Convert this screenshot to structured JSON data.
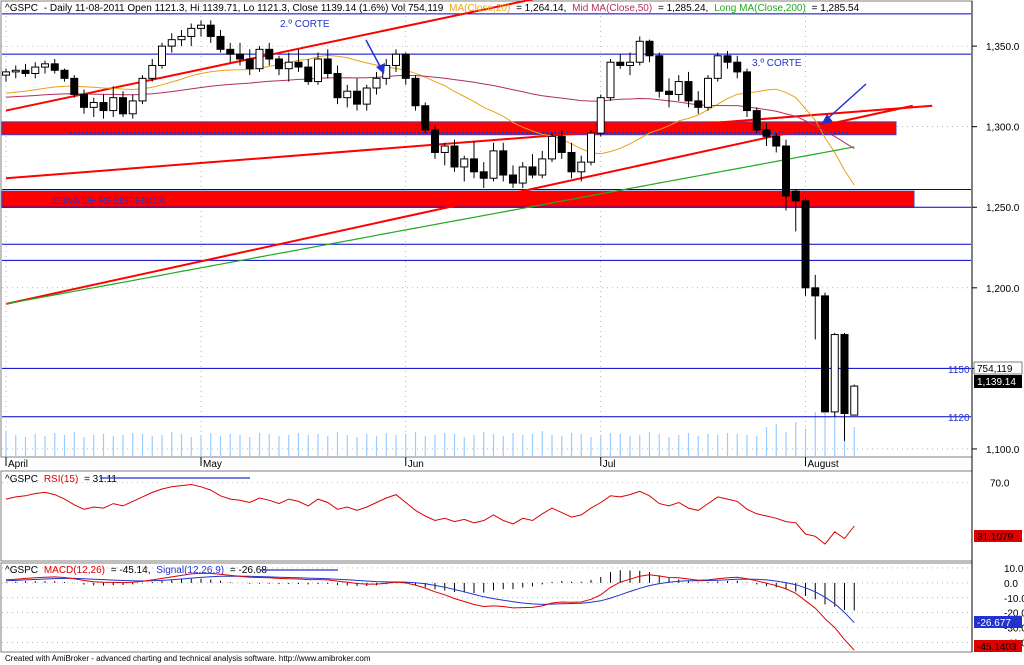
{
  "colors": {
    "background": "#ffffff",
    "frame": "#7f7f7f",
    "h_line": "#0000cc",
    "trend": "#ff0000",
    "zone": "#ff0000",
    "ma20": "#e8a21a",
    "ma50": "#b03060",
    "ma200": "#22aa22",
    "volume": "#99ccff",
    "rsi": "#dd0000",
    "macd": "#dd0000",
    "signal": "#2233cc",
    "annotation": "#2233cc"
  },
  "header": {
    "symbol": "^GSPC",
    "info": "- Daily 11-08-2011 Open 1121.3, Hi 1139.71, Lo 1121.3, Close 1139.14 (1.6%) Vol 754,119",
    "ma20_label": "MA(Close,20)",
    "ma20_value": "= 1,264.14,",
    "ma50_label": "Mid MA(Close,50)",
    "ma50_value": "= 1,285.24,",
    "ma200_label": "Long MA(Close,200)",
    "ma200_value": "= 1,285.54"
  },
  "annotations": {
    "corte2": "2.º CORTE",
    "corte3": "3.º CORTE",
    "zona": "ZONA DE RESISTENCIA",
    "label_1150": "1150",
    "label_1120": "1120",
    "badge_volume": "754,119",
    "badge_close": "1,139.14"
  },
  "rsi_panel": {
    "symbol": "^GSPC",
    "label": "RSI(15)",
    "value": "= 31.11",
    "badge": "31.1079"
  },
  "macd_panel": {
    "symbol": "^GSPC",
    "label": "MACD(12,26)",
    "value": "= -45.14,",
    "signal_label": "Signal(12,26,9)",
    "signal_value": "= -26.68",
    "badge_signal": "-26.677",
    "badge_macd": "-45.1403"
  },
  "footer": "Created with AmiBroker - advanced charting and technical analysis software. http://www.amibroker.com",
  "chart_data": {
    "type": "candlestick",
    "price_axis": {
      "ylim": [
        1095,
        1378
      ],
      "ticks": [
        "1,350.0",
        "1,300.0",
        "1,250.0",
        "1,200.0",
        "1,150.0",
        "1,100.0"
      ],
      "tick_values": [
        1350,
        1300,
        1250,
        1200,
        1150,
        1100
      ]
    },
    "months": [
      "April",
      "May",
      "Jun",
      "Jul",
      "August"
    ],
    "month_start_index": [
      0,
      20,
      41,
      61,
      82
    ],
    "horizontal_levels": [
      1370,
      1345,
      1261,
      1250,
      1227,
      1217,
      1150,
      1120
    ],
    "resistance_zones": [
      {
        "low": 1295,
        "high": 1303
      },
      {
        "low": 1250,
        "high": 1260
      }
    ],
    "trendlines": [
      {
        "from": [
          0,
          1310
        ],
        "to": [
          61,
          1388
        ]
      },
      {
        "from": [
          0,
          1268
        ],
        "to": [
          95,
          1313
        ]
      },
      {
        "from": [
          0,
          1190
        ],
        "to": [
          93,
          1313
        ]
      }
    ],
    "candles": [
      [
        1332,
        1336,
        1328,
        1334
      ],
      [
        1334,
        1338,
        1330,
        1335
      ],
      [
        1335,
        1339,
        1331,
        1333
      ],
      [
        1333,
        1340,
        1330,
        1337
      ],
      [
        1337,
        1341,
        1333,
        1339
      ],
      [
        1339,
        1342,
        1333,
        1335
      ],
      [
        1335,
        1336,
        1328,
        1330
      ],
      [
        1330,
        1332,
        1318,
        1320
      ],
      [
        1320,
        1323,
        1308,
        1312
      ],
      [
        1312,
        1318,
        1306,
        1315
      ],
      [
        1315,
        1320,
        1305,
        1310
      ],
      [
        1310,
        1325,
        1306,
        1318
      ],
      [
        1318,
        1322,
        1306,
        1308
      ],
      [
        1308,
        1320,
        1305,
        1316
      ],
      [
        1316,
        1332,
        1314,
        1330
      ],
      [
        1330,
        1342,
        1328,
        1338
      ],
      [
        1338,
        1352,
        1336,
        1350
      ],
      [
        1350,
        1358,
        1346,
        1354
      ],
      [
        1354,
        1360,
        1350,
        1356
      ],
      [
        1356,
        1364,
        1350,
        1361
      ],
      [
        1361,
        1366,
        1356,
        1363
      ],
      [
        1363,
        1366,
        1352,
        1356
      ],
      [
        1356,
        1360,
        1346,
        1348
      ],
      [
        1348,
        1352,
        1340,
        1345
      ],
      [
        1345,
        1352,
        1338,
        1342
      ],
      [
        1342,
        1348,
        1332,
        1336
      ],
      [
        1336,
        1350,
        1334,
        1348
      ],
      [
        1348,
        1352,
        1338,
        1342
      ],
      [
        1342,
        1344,
        1332,
        1336
      ],
      [
        1336,
        1346,
        1328,
        1340
      ],
      [
        1340,
        1348,
        1334,
        1337
      ],
      [
        1337,
        1342,
        1326,
        1328
      ],
      [
        1328,
        1346,
        1326,
        1342
      ],
      [
        1342,
        1348,
        1330,
        1333
      ],
      [
        1333,
        1338,
        1314,
        1318
      ],
      [
        1318,
        1326,
        1312,
        1322
      ],
      [
        1322,
        1330,
        1310,
        1314
      ],
      [
        1314,
        1326,
        1310,
        1324
      ],
      [
        1324,
        1334,
        1320,
        1330
      ],
      [
        1330,
        1342,
        1326,
        1338
      ],
      [
        1338,
        1348,
        1334,
        1345
      ],
      [
        1345,
        1346,
        1326,
        1330
      ],
      [
        1330,
        1332,
        1310,
        1313
      ],
      [
        1313,
        1315,
        1296,
        1298
      ],
      [
        1298,
        1301,
        1280,
        1284
      ],
      [
        1284,
        1290,
        1276,
        1288
      ],
      [
        1288,
        1292,
        1272,
        1275
      ],
      [
        1275,
        1282,
        1266,
        1280
      ],
      [
        1280,
        1291,
        1268,
        1272
      ],
      [
        1272,
        1278,
        1262,
        1268
      ],
      [
        1268,
        1290,
        1266,
        1285
      ],
      [
        1285,
        1290,
        1266,
        1270
      ],
      [
        1270,
        1276,
        1262,
        1265
      ],
      [
        1265,
        1278,
        1262,
        1275
      ],
      [
        1275,
        1283,
        1268,
        1270
      ],
      [
        1270,
        1285,
        1268,
        1280
      ],
      [
        1280,
        1296,
        1278,
        1294
      ],
      [
        1294,
        1298,
        1280,
        1284
      ],
      [
        1284,
        1290,
        1268,
        1272
      ],
      [
        1272,
        1282,
        1266,
        1278
      ],
      [
        1278,
        1298,
        1276,
        1296
      ],
      [
        1296,
        1320,
        1294,
        1318
      ],
      [
        1318,
        1342,
        1316,
        1340
      ],
      [
        1340,
        1345,
        1336,
        1338
      ],
      [
        1338,
        1346,
        1332,
        1340
      ],
      [
        1340,
        1356,
        1338,
        1353
      ],
      [
        1353,
        1354,
        1340,
        1344
      ],
      [
        1344,
        1346,
        1318,
        1322
      ],
      [
        1322,
        1330,
        1312,
        1320
      ],
      [
        1320,
        1332,
        1316,
        1328
      ],
      [
        1328,
        1334,
        1312,
        1316
      ],
      [
        1316,
        1322,
        1308,
        1312
      ],
      [
        1312,
        1332,
        1310,
        1330
      ],
      [
        1330,
        1346,
        1328,
        1344
      ],
      [
        1344,
        1347,
        1336,
        1340
      ],
      [
        1340,
        1344,
        1330,
        1334
      ],
      [
        1334,
        1336,
        1306,
        1310
      ],
      [
        1310,
        1312,
        1296,
        1298
      ],
      [
        1298,
        1302,
        1288,
        1294
      ],
      [
        1294,
        1296,
        1284,
        1288
      ],
      [
        1288,
        1292,
        1248,
        1257
      ],
      [
        1260,
        1261,
        1235,
        1254
      ],
      [
        1254,
        1256,
        1195,
        1200
      ],
      [
        1200,
        1208,
        1168,
        1195
      ],
      [
        1195,
        1197,
        1123,
        1123
      ],
      [
        1123,
        1172,
        1120,
        1171
      ],
      [
        1171,
        1172,
        1105,
        1122
      ],
      [
        1121,
        1140,
        1121,
        1139
      ]
    ],
    "volume": [
      0.25,
      0.22,
      0.2,
      0.23,
      0.21,
      0.24,
      0.22,
      0.25,
      0.2,
      0.22,
      0.23,
      0.21,
      0.22,
      0.24,
      0.23,
      0.21,
      0.22,
      0.25,
      0.23,
      0.2,
      0.22,
      0.24,
      0.21,
      0.23,
      0.22,
      0.2,
      0.24,
      0.23,
      0.21,
      0.22,
      0.24,
      0.22,
      0.23,
      0.21,
      0.25,
      0.22,
      0.2,
      0.23,
      0.21,
      0.24,
      0.22,
      0.23,
      0.25,
      0.21,
      0.22,
      0.24,
      0.23,
      0.2,
      0.22,
      0.25,
      0.23,
      0.21,
      0.24,
      0.22,
      0.23,
      0.26,
      0.22,
      0.21,
      0.24,
      0.23,
      0.2,
      0.22,
      0.24,
      0.23,
      0.21,
      0.22,
      0.25,
      0.23,
      0.2,
      0.22,
      0.24,
      0.21,
      0.23,
      0.22,
      0.24,
      0.23,
      0.22,
      0.21,
      0.3,
      0.33,
      0.25,
      0.35,
      0.28,
      0.45,
      0.6,
      0.42,
      0.38,
      0.3
    ],
    "rsi": {
      "ylim": [
        0,
        80
      ],
      "ticks": [
        70
      ],
      "values": [
        55,
        57,
        58,
        60,
        61,
        59,
        55,
        50,
        46,
        48,
        47,
        51,
        49,
        53,
        57,
        61,
        64,
        66,
        67,
        68,
        66,
        63,
        58,
        55,
        54,
        52,
        56,
        54,
        51,
        55,
        53,
        49,
        55,
        52,
        46,
        48,
        45,
        48,
        52,
        56,
        59,
        52,
        45,
        40,
        36,
        38,
        35,
        37,
        34,
        36,
        41,
        36,
        33,
        38,
        36,
        42,
        47,
        43,
        39,
        41,
        47,
        52,
        58,
        57,
        59,
        62,
        58,
        51,
        49,
        52,
        47,
        45,
        51,
        57,
        55,
        53,
        46,
        42,
        40,
        38,
        35,
        34,
        24,
        22,
        15,
        26,
        20,
        31.1
      ]
    },
    "macd": {
      "ylim": [
        -45,
        12
      ],
      "ticks": [
        10,
        0,
        -10,
        -20,
        -30,
        -40
      ],
      "macd": [
        2,
        2.5,
        3,
        3.4,
        3.8,
        4,
        3.6,
        2.8,
        1.6,
        0.8,
        0.4,
        0.3,
        0.2,
        0.4,
        1,
        2,
        3,
        4,
        5,
        6,
        6.5,
        6.4,
        5.8,
        5,
        4.4,
        3.8,
        3.6,
        3.4,
        3,
        2.8,
        2.6,
        2.2,
        2.2,
        2,
        1.2,
        0.4,
        -0.4,
        -0.8,
        -0.8,
        -0.2,
        0.4,
        0,
        -1.5,
        -3.5,
        -6,
        -8,
        -10.5,
        -12.5,
        -14.5,
        -15.8,
        -15.4,
        -15.8,
        -16.8,
        -16.6,
        -16.4,
        -15.4,
        -13.5,
        -12.8,
        -13,
        -12.8,
        -11,
        -8,
        -3,
        0.5,
        2.5,
        4.5,
        5.4,
        4.6,
        3.6,
        3.4,
        2.6,
        1.8,
        2,
        2.8,
        3.4,
        3.8,
        2.8,
        1.4,
        -0.2,
        -1.8,
        -4,
        -7,
        -12,
        -17,
        -24,
        -30,
        -38,
        -45.14
      ],
      "signal": [
        1.5,
        1.7,
        2,
        2.3,
        2.6,
        2.9,
        3,
        3,
        2.8,
        2.5,
        2.2,
        1.9,
        1.6,
        1.4,
        1.3,
        1.4,
        1.7,
        2.1,
        2.6,
        3.2,
        3.7,
        4.1,
        4.4,
        4.5,
        4.5,
        4.4,
        4.2,
        4,
        3.8,
        3.6,
        3.4,
        3.2,
        3,
        2.8,
        2.5,
        2.1,
        1.7,
        1.3,
        0.9,
        0.7,
        0.6,
        0.5,
        0.1,
        -0.6,
        -1.7,
        -2.9,
        -4.4,
        -6,
        -7.7,
        -9.3,
        -10.5,
        -11.6,
        -12.6,
        -13.5,
        -14.1,
        -14.4,
        -14.2,
        -14,
        -13.8,
        -13.6,
        -13,
        -12,
        -10.2,
        -8,
        -5.8,
        -3.6,
        -1.8,
        -0.5,
        0.4,
        1.1,
        1.4,
        1.5,
        1.6,
        1.8,
        2.1,
        2.4,
        2.5,
        2.4,
        2,
        1.2,
        0.2,
        -1.2,
        -3.3,
        -6,
        -9.6,
        -14,
        -19.8,
        -26.68
      ]
    }
  }
}
